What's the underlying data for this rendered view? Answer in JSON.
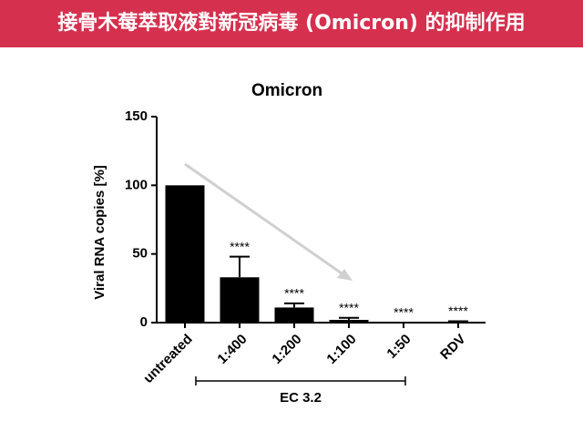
{
  "header": {
    "title": "接骨木莓萃取液對新冠病毒 (Omicron) 的抑制作用"
  },
  "chart_data": {
    "type": "bar",
    "title": "Omicron",
    "y_label": "Viral RNA copies [%]",
    "categories": [
      "untreated",
      "1:400",
      "1:200",
      "1:100",
      "1:50",
      "RDV"
    ],
    "values": [
      100,
      33,
      11,
      2,
      0,
      0
    ],
    "errors": [
      null,
      15,
      3,
      1.5,
      null,
      1
    ],
    "significance": [
      null,
      "****",
      "****",
      "****",
      "****",
      "****"
    ],
    "group_label": "EC 3.2",
    "color": "#000000",
    "ylim": [
      0,
      150
    ],
    "yticks": [
      0,
      50,
      100,
      150
    ],
    "grid": false
  }
}
